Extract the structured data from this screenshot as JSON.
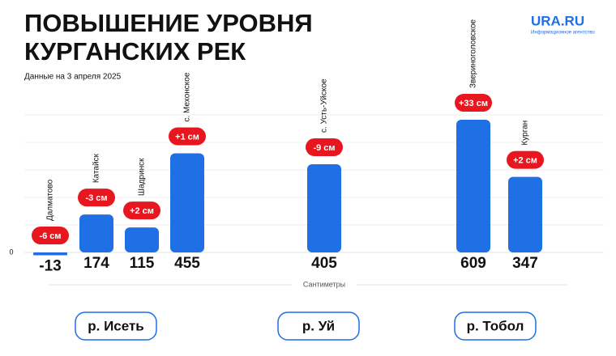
{
  "chart_data": {
    "type": "bar",
    "title_lines": [
      "ПОВЫШЕНИЕ УРОВНЯ",
      "КУРГАНСКИХ РЕК"
    ],
    "subtitle": "Данные на 3 апреля 2025",
    "logo": "URA.RU",
    "logo_caption": "Информационное агентство",
    "categories": [
      "Далматово",
      "Катайск",
      "Шадринск",
      "с. Мехонское",
      "с. Усть-Уйское",
      "Звериноголовское",
      "Курган"
    ],
    "values": [
      -13,
      174,
      115,
      455,
      405,
      609,
      347
    ],
    "changes": [
      "-6 см",
      "-3 см",
      "+2 см",
      "+1 см",
      "-9 см",
      "+33 см",
      "+2 см"
    ],
    "rivers": [
      "р. Исеть",
      "р. Уй",
      "р. Тобол"
    ],
    "x_label": "Сантиметры",
    "color": "#1f6fe5",
    "change_color": "#e8171f",
    "ylim": [
      -50,
      650
    ],
    "yticks": [
      0
    ],
    "grid": true
  }
}
